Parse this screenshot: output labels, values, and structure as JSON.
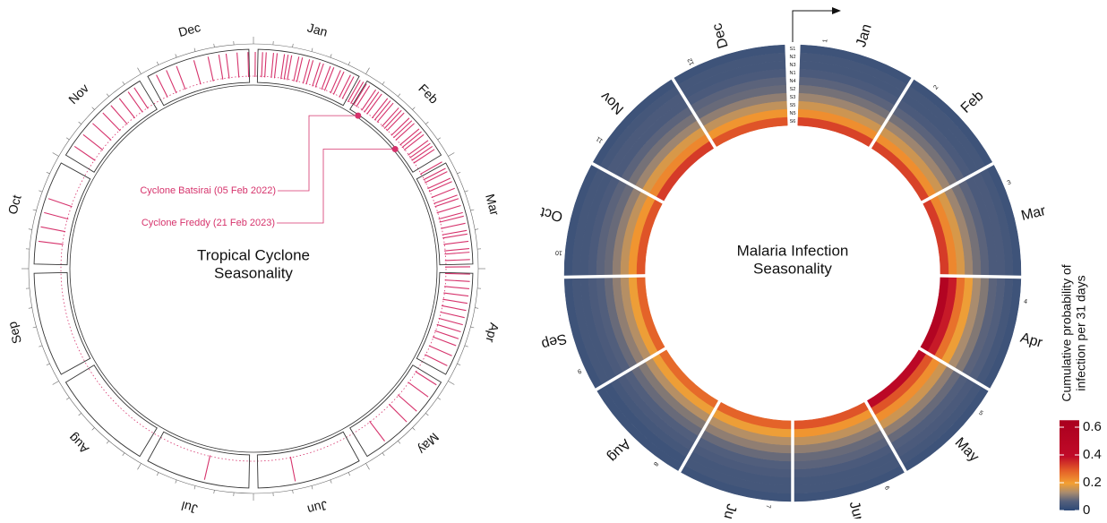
{
  "chart_data": [
    {
      "type": "radial-events",
      "title": [
        "Tropical Cyclone",
        "Seasonality"
      ],
      "categories": [
        "Jan",
        "Feb",
        "Mar",
        "Apr",
        "May",
        "Jun",
        "Jul",
        "Aug",
        "Sep",
        "Oct",
        "Nov",
        "Dec"
      ],
      "values": [
        [
          1,
          3,
          4,
          6,
          7,
          9,
          10,
          11,
          13,
          14,
          16,
          17,
          19,
          20,
          22,
          23,
          25,
          26,
          28,
          29,
          31
        ],
        [
          1,
          2,
          3,
          5,
          6,
          7,
          9,
          10,
          11,
          13,
          14,
          15,
          17,
          18,
          19,
          21,
          22,
          23,
          25,
          26,
          27,
          28
        ],
        [
          1,
          3,
          4,
          6,
          7,
          9,
          11,
          12,
          14,
          16,
          17,
          19,
          21,
          22,
          24,
          26,
          27,
          29,
          31
        ],
        [
          2,
          4,
          6,
          8,
          10,
          12,
          14,
          16,
          18,
          20,
          22,
          25,
          28
        ],
        [
          3,
          7,
          12,
          16,
          24
        ],
        [
          20
        ],
        [
          14
        ],
        [],
        [],
        [
          8,
          12,
          16,
          20
        ],
        [
          5,
          9,
          13,
          17,
          20,
          23,
          26,
          28
        ],
        [
          4,
          7,
          10,
          15,
          19,
          22,
          24,
          27,
          30
        ]
      ],
      "color": "#d6336c",
      "annotations": [
        {
          "text": "Cyclone Batsirai (05 Feb 2022)",
          "category": "Feb",
          "day": 5
        },
        {
          "text": "Cyclone Freddy (21 Feb 2023)",
          "category": "Feb",
          "day": 21
        }
      ]
    },
    {
      "type": "radial-heatmap",
      "title": [
        "Malaria Infection",
        "Seasonality"
      ],
      "categories": [
        "Jan",
        "Feb",
        "Mar",
        "Apr",
        "May",
        "Jun",
        "Jul",
        "Aug",
        "Sep",
        "Oct",
        "Nov",
        "Dec"
      ],
      "month_numbers": [
        "1",
        "2",
        "3",
        "4",
        "5",
        "6",
        "7",
        "8",
        "9",
        "10",
        "11",
        "12"
      ],
      "rings": [
        "S1",
        "N2",
        "N3",
        "N1",
        "N4",
        "S2",
        "S3",
        "S5",
        "N5",
        "S6"
      ],
      "values": [
        [
          0.03,
          0.03,
          0.03,
          0.03,
          0.03,
          0.03,
          0.03,
          0.03,
          0.03,
          0.03,
          0.03,
          0.03
        ],
        [
          0.04,
          0.04,
          0.04,
          0.04,
          0.04,
          0.04,
          0.04,
          0.03,
          0.04,
          0.04,
          0.04,
          0.04
        ],
        [
          0.04,
          0.04,
          0.05,
          0.06,
          0.05,
          0.04,
          0.04,
          0.04,
          0.04,
          0.04,
          0.05,
          0.04
        ],
        [
          0.05,
          0.05,
          0.05,
          0.07,
          0.06,
          0.05,
          0.05,
          0.05,
          0.05,
          0.05,
          0.05,
          0.05
        ],
        [
          0.07,
          0.07,
          0.07,
          0.1,
          0.08,
          0.07,
          0.06,
          0.06,
          0.06,
          0.07,
          0.07,
          0.07
        ],
        [
          0.09,
          0.09,
          0.09,
          0.13,
          0.11,
          0.08,
          0.08,
          0.08,
          0.08,
          0.08,
          0.09,
          0.08
        ],
        [
          0.12,
          0.12,
          0.12,
          0.19,
          0.16,
          0.11,
          0.11,
          0.1,
          0.11,
          0.11,
          0.12,
          0.11
        ],
        [
          0.16,
          0.16,
          0.17,
          0.26,
          0.22,
          0.15,
          0.14,
          0.14,
          0.14,
          0.15,
          0.17,
          0.15
        ],
        [
          0.22,
          0.22,
          0.23,
          0.37,
          0.3,
          0.21,
          0.19,
          0.19,
          0.19,
          0.21,
          0.23,
          0.21
        ],
        [
          0.32,
          0.32,
          0.33,
          0.55,
          0.45,
          0.3,
          0.28,
          0.27,
          0.28,
          0.3,
          0.33,
          0.3
        ]
      ],
      "colorbar": {
        "label": [
          "Cumulative probability of",
          "infection per 31 days"
        ],
        "lim": [
          0,
          0.65
        ],
        "ticks": [
          0,
          0.2,
          0.4,
          0.6
        ]
      }
    }
  ]
}
